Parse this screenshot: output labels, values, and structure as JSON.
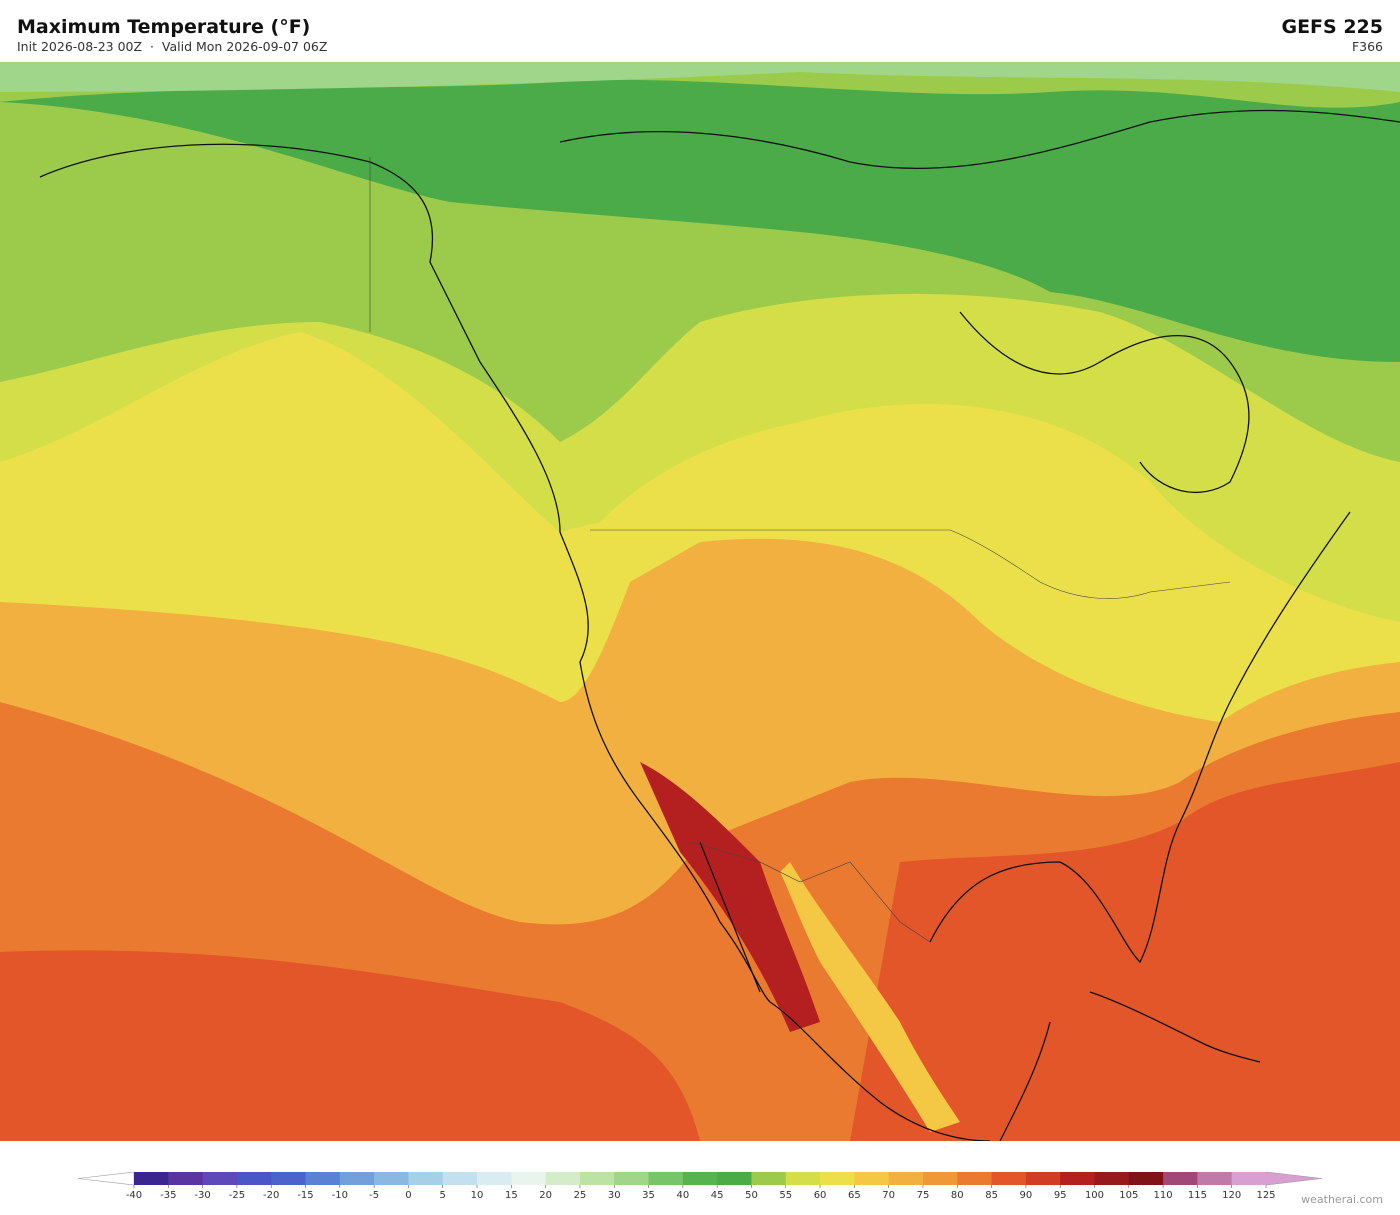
{
  "header": {
    "title": "Maximum Temperature  (°F)",
    "subtitle": "Init 2026-08-23 00Z  ·  Valid Mon 2026-09-07 06Z",
    "model": "GEFS  225",
    "forecast_hour": "F366"
  },
  "colorbar": {
    "ticks": [
      -40,
      -35,
      -30,
      -25,
      -20,
      -15,
      -10,
      -5,
      0,
      5,
      10,
      15,
      20,
      25,
      30,
      35,
      40,
      45,
      50,
      55,
      60,
      65,
      70,
      75,
      80,
      85,
      90,
      95,
      100,
      105,
      110,
      115,
      120,
      125
    ],
    "colors": [
      "#3d2590",
      "#5a35a0",
      "#6048b8",
      "#4a55c8",
      "#4a64cc",
      "#5a82d4",
      "#73a0d8",
      "#8ab8e0",
      "#a6cfe8",
      "#c2e0ee",
      "#d8ecf2",
      "#e8f4ec",
      "#d4ecc8",
      "#bde3a4",
      "#9fd68a",
      "#78c46a",
      "#55b450",
      "#4aab48",
      "#9cca4a",
      "#d4de48",
      "#ece04a",
      "#f4c844",
      "#f2b040",
      "#ee9838",
      "#ea7a30",
      "#e2562a",
      "#d23c24",
      "#b42020",
      "#961a1c",
      "#7e1418",
      "#a04878",
      "#c07aa8",
      "#d8a0d0"
    ],
    "under_color": "#ffffff",
    "over_color": "#d8a0d0"
  },
  "credit": "weatherai.com"
}
